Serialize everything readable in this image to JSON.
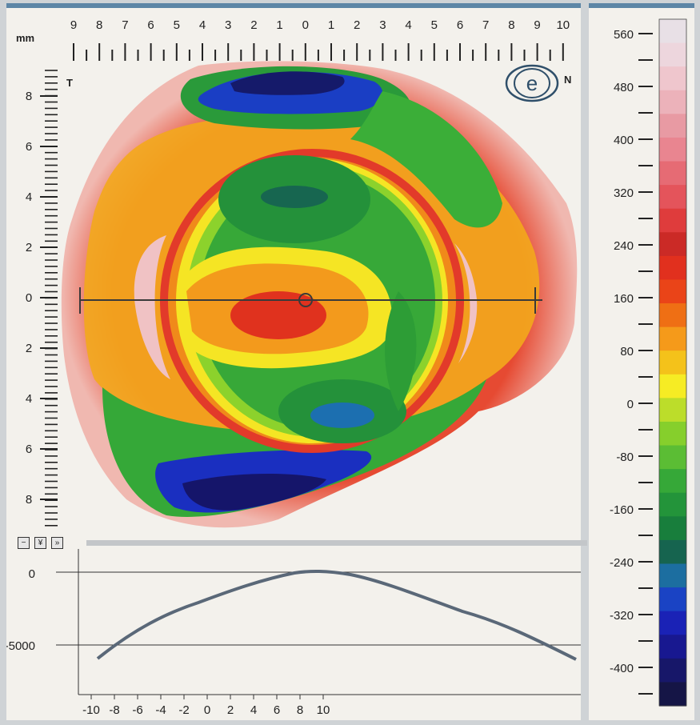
{
  "map": {
    "unit": "mm",
    "top_ticks": [
      "9",
      "8",
      "7",
      "6",
      "5",
      "4",
      "3",
      "2",
      "1",
      "0",
      "1",
      "2",
      "3",
      "4",
      "5",
      "6",
      "7",
      "8",
      "9",
      "10"
    ],
    "left_ticks": [
      "8",
      "6",
      "4",
      "2",
      "0",
      "2",
      "4",
      "6",
      "8"
    ],
    "temporal_label": "T",
    "nasal_label": "N",
    "logo_letter": "e"
  },
  "color_scale": {
    "labels": [
      "560",
      "480",
      "400",
      "320",
      "240",
      "160",
      "80",
      "0",
      "-80",
      "-160",
      "-240",
      "-320",
      "-400"
    ],
    "colors": [
      "#e8e0e6",
      "#edd6dd",
      "#efc6cd",
      "#ecb2ba",
      "#e89aa3",
      "#e98590",
      "#e66b74",
      "#e4545b",
      "#df3c3c",
      "#cb2a26",
      "#e1301e",
      "#ea4418",
      "#ef6f14",
      "#f59a1a",
      "#f4c21a",
      "#f6ec24",
      "#bcdd2a",
      "#86cf2c",
      "#5bbd34",
      "#36a838",
      "#23943a",
      "#187e3c",
      "#16644f",
      "#1c6ea0",
      "#1a43c4",
      "#1a22b6",
      "#181890",
      "#171769",
      "#151546"
    ]
  },
  "profile": {
    "y_labels": [
      "0",
      "-5000"
    ],
    "x_labels": [
      "-10",
      "-8",
      "-6",
      "-4",
      "-2",
      "0",
      "2",
      "4",
      "6",
      "8",
      "10"
    ]
  },
  "tools": [
    "−",
    "¥",
    "»"
  ]
}
